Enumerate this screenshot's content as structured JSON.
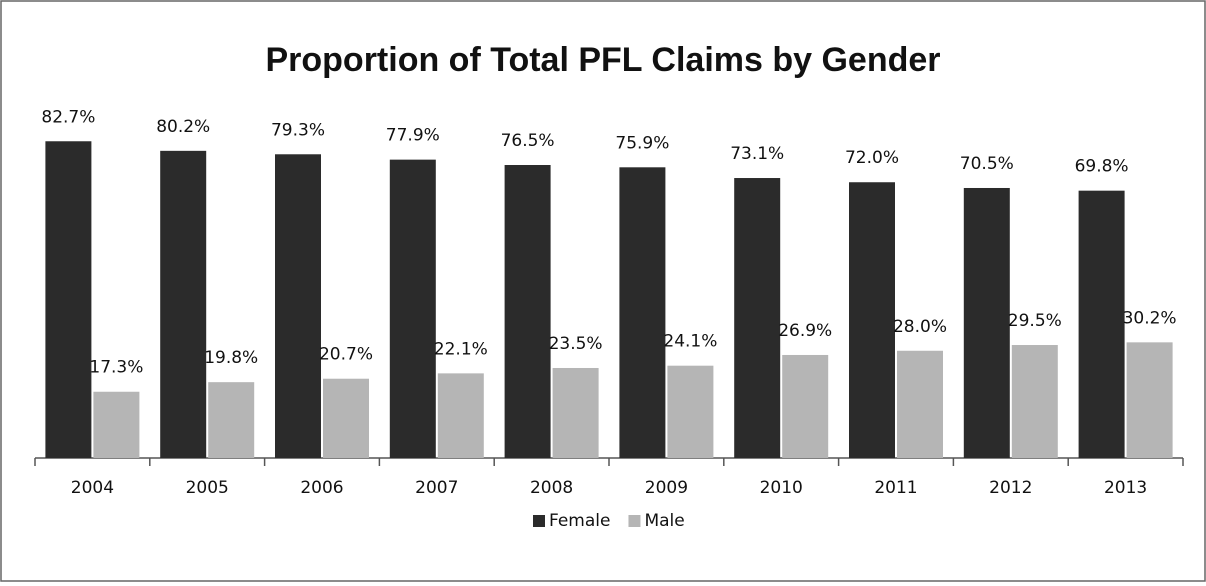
{
  "chart_data": {
    "type": "bar",
    "title": "Proportion of Total PFL Claims by Gender",
    "categories": [
      "2004",
      "2005",
      "2006",
      "2007",
      "2008",
      "2009",
      "2010",
      "2011",
      "2012",
      "2013"
    ],
    "series": [
      {
        "name": "Female",
        "color": "#2b2b2b",
        "values": [
          82.7,
          80.2,
          79.3,
          77.9,
          76.5,
          75.9,
          73.1,
          72.0,
          70.5,
          69.8
        ],
        "value_labels": [
          "82.7%",
          "80.2%",
          "79.3%",
          "77.9%",
          "76.5%",
          "75.9%",
          "73.1%",
          "72.0%",
          "70.5%",
          "69.8%"
        ]
      },
      {
        "name": "Male",
        "color": "#b5b5b5",
        "values": [
          17.3,
          19.8,
          20.7,
          22.1,
          23.5,
          24.1,
          26.9,
          28.0,
          29.5,
          30.2
        ],
        "value_labels": [
          "17.3%",
          "19.8%",
          "20.7%",
          "22.1%",
          "23.5%",
          "24.1%",
          "26.9%",
          "28.0%",
          "29.5%",
          "30.2%"
        ]
      }
    ],
    "legend": "bottom"
  }
}
